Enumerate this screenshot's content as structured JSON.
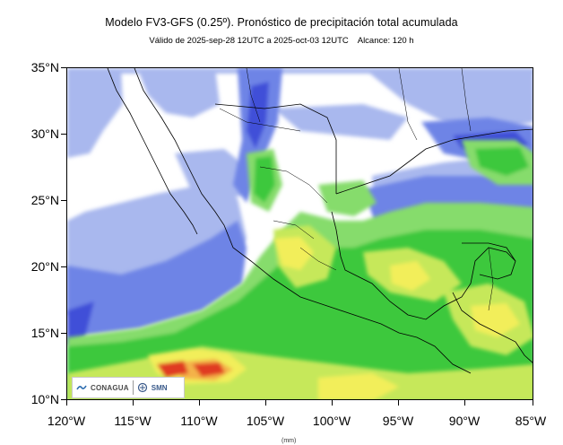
{
  "header": {
    "title": "Modelo FV3-GFS (0.25º). Pronóstico de precipitación total acumulada",
    "valid": "Válido de 2025-sep-28 12UTC a 2025-oct-03 12UTC",
    "range": "Alcance: 120 h"
  },
  "axes": {
    "lat_ticks": [
      "35°N",
      "30°N",
      "25°N",
      "20°N",
      "15°N",
      "10°N"
    ],
    "lon_ticks": [
      "120°W",
      "115°W",
      "110°W",
      "105°W",
      "100°W",
      "95°W",
      "90°W",
      "85°W"
    ]
  },
  "logos": {
    "conagua": "CONAGUA",
    "smn": "SMN"
  },
  "colorbar": {
    "unit_label": "(mm)"
  },
  "palette": {
    "ocean_light": "#a9b8ee",
    "blue": "#6e84e6",
    "deep_blue": "#3f4fd8",
    "green_light": "#86dc6c",
    "green": "#3cc83c",
    "yellow_green": "#c6e85a",
    "yellow": "#f2ee5a",
    "orange": "#f4b24a",
    "red": "#e03a24",
    "land": "#ffffff",
    "border": "#000000"
  }
}
